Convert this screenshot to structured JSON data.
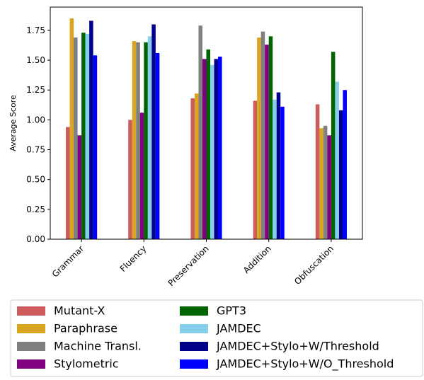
{
  "chart_data": {
    "type": "bar",
    "ylabel": "Average Score",
    "categories": [
      "Grammar",
      "Fluency",
      "Preservation",
      "Addition",
      "Obfuscation"
    ],
    "ylim": [
      0,
      1.945
    ],
    "yticks": [
      {
        "value": 0,
        "label": "0.00"
      },
      {
        "value": 0.25,
        "label": "0.25"
      },
      {
        "value": 0.5,
        "label": "0.50"
      },
      {
        "value": 0.75,
        "label": "0.75"
      },
      {
        "value": 1,
        "label": "1.00"
      },
      {
        "value": 1.25,
        "label": "1.25"
      },
      {
        "value": 1.5,
        "label": "1.50"
      },
      {
        "value": 1.75,
        "label": "1.75"
      }
    ],
    "series": [
      {
        "name": "Mutant-X",
        "color": "#cd5c5c",
        "values": [
          0.94,
          1.0,
          1.18,
          1.16,
          1.13
        ]
      },
      {
        "name": "Paraphrase",
        "color": "#daa520",
        "values": [
          1.85,
          1.66,
          1.22,
          1.69,
          0.93
        ]
      },
      {
        "name": "Machine Transl.",
        "color": "#808080",
        "values": [
          1.69,
          1.65,
          1.79,
          1.74,
          0.95
        ]
      },
      {
        "name": "Stylometric",
        "color": "#800080",
        "values": [
          0.87,
          1.06,
          1.51,
          1.63,
          0.87
        ]
      },
      {
        "name": "GPT3",
        "color": "#006400",
        "values": [
          1.73,
          1.65,
          1.59,
          1.7,
          1.57
        ]
      },
      {
        "name": "JAMDEC",
        "color": "#87ceeb",
        "values": [
          1.72,
          1.7,
          1.46,
          1.17,
          1.32
        ]
      },
      {
        "name": "JAMDEC+Stylo+W/Threshold",
        "color": "#00008b",
        "values": [
          1.83,
          1.8,
          1.51,
          1.23,
          1.08
        ]
      },
      {
        "name": "JAMDEC+Stylo+W/O_Threshold",
        "color": "#0000ff",
        "values": [
          1.54,
          1.56,
          1.53,
          1.11,
          1.25
        ]
      }
    ]
  }
}
